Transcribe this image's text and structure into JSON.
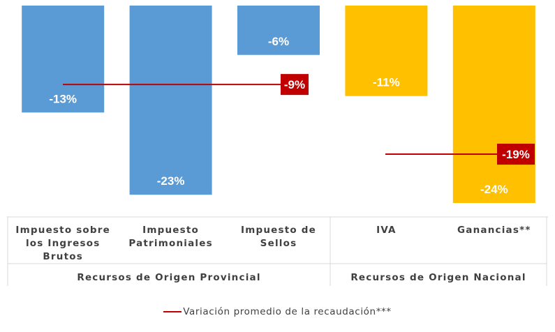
{
  "chart_data": {
    "type": "bar",
    "categories": [
      [
        "Impuesto sobre",
        "los Ingresos",
        "Brutos"
      ],
      [
        "Impuesto",
        "Patrimoniales"
      ],
      [
        "Impuesto de",
        "Sellos"
      ],
      [
        "IVA"
      ],
      [
        "Ganancias**"
      ]
    ],
    "values": [
      -13,
      -23,
      -6,
      -11,
      -24
    ],
    "value_labels": [
      "-13%",
      "-23%",
      "-6%",
      "-11%",
      "-24%"
    ],
    "bar_colors": [
      "#5b9bd5",
      "#5b9bd5",
      "#5b9bd5",
      "#ffc000",
      "#ffc000"
    ],
    "ylim": [
      -26,
      0
    ],
    "groups": [
      {
        "label": "Recursos de Origen Provincial",
        "categories": [
          0,
          1,
          2
        ]
      },
      {
        "label": "Recursos de Origen Nacional",
        "categories": [
          3,
          4
        ]
      }
    ],
    "averages": [
      {
        "group": 0,
        "value": -9,
        "label": "-9%",
        "color": "#c00000"
      },
      {
        "group": 1,
        "value": -19,
        "label": "-19%",
        "color": "#c00000"
      }
    ],
    "legend": {
      "label": "Variación promedio de la recaudación***",
      "color": "#c00000",
      "position": "bottom-center"
    },
    "grid": false
  }
}
